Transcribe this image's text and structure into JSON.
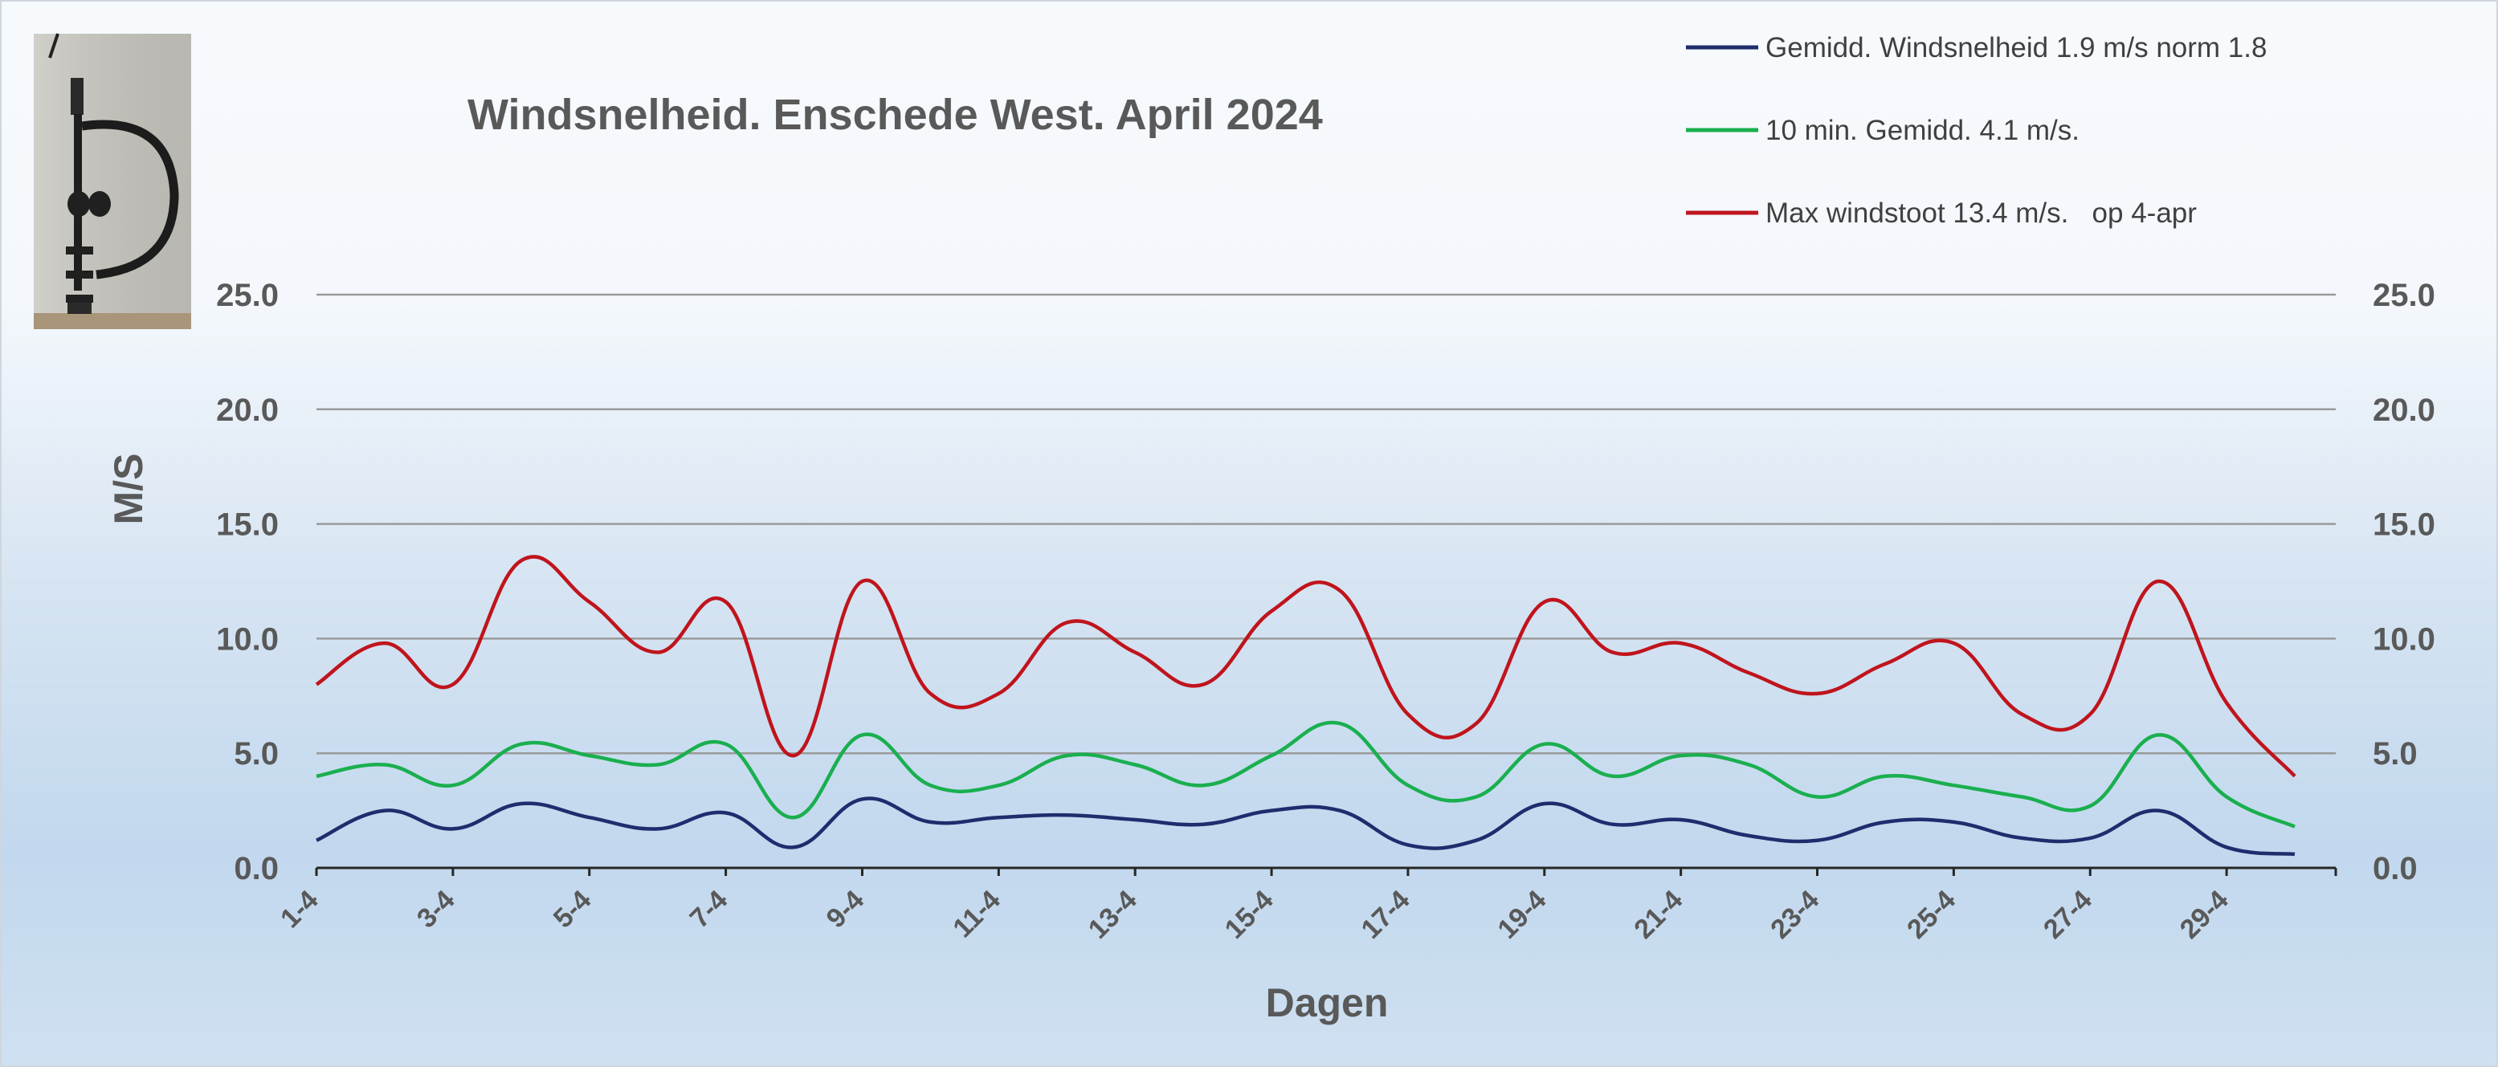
{
  "chart_data": {
    "type": "line",
    "title": "Windsnelheid. Enschede West. April 2024",
    "xlabel": "Dagen",
    "ylabel": "M/S",
    "ylim": [
      0,
      25
    ],
    "yticks": [
      "0.0",
      "5.0",
      "10.0",
      "15.0",
      "20.0",
      "25.0"
    ],
    "y_axes": "left and right",
    "grid": true,
    "legend_position": "top-right",
    "categories": [
      "1-4",
      "2-4",
      "3-4",
      "4-4",
      "5-4",
      "6-4",
      "7-4",
      "8-4",
      "9-4",
      "10-4",
      "11-4",
      "12-4",
      "13-4",
      "14-4",
      "15-4",
      "16-4",
      "17-4",
      "18-4",
      "19-4",
      "20-4",
      "21-4",
      "22-4",
      "23-4",
      "24-4",
      "25-4",
      "26-4",
      "27-4",
      "28-4",
      "29-4",
      "30-4"
    ],
    "x_tick_labels": [
      "1-4",
      "3-4",
      "5-4",
      "7-4",
      "9-4",
      "11-4",
      "13-4",
      "15-4",
      "17-4",
      "19-4",
      "21-4",
      "23-4",
      "25-4",
      "27-4",
      "29-4"
    ],
    "series": [
      {
        "name": "Gemidd. Windsnelheid 1.9 m/s norm 1.8",
        "color": "#1f2d6e",
        "values": [
          1.2,
          2.5,
          1.7,
          2.8,
          2.2,
          1.7,
          2.4,
          0.9,
          3.0,
          2.0,
          2.2,
          2.3,
          2.1,
          1.9,
          2.5,
          2.5,
          1.0,
          1.2,
          2.8,
          1.9,
          2.1,
          1.4,
          1.2,
          2.0,
          2.0,
          1.3,
          1.3,
          2.5,
          0.9,
          0.6
        ]
      },
      {
        "name": "10 min. Gemidd. 4.1 m/s.",
        "color": "#1aaf4f",
        "values": [
          4.0,
          4.5,
          3.6,
          5.4,
          4.9,
          4.5,
          5.4,
          2.2,
          5.8,
          3.6,
          3.6,
          4.9,
          4.5,
          3.6,
          4.9,
          6.3,
          3.6,
          3.1,
          5.4,
          4.0,
          4.9,
          4.5,
          3.1,
          4.0,
          3.6,
          3.1,
          2.7,
          5.8,
          3.1,
          1.8
        ]
      },
      {
        "name": "Max windstoot 13.4 m/s.   op 4-apr",
        "color": "#c0141c",
        "values": [
          8.0,
          9.8,
          8.0,
          13.4,
          11.6,
          9.4,
          11.6,
          4.9,
          12.5,
          7.6,
          7.6,
          10.7,
          9.4,
          8.0,
          11.2,
          12.1,
          6.7,
          6.3,
          11.6,
          9.4,
          9.8,
          8.5,
          7.6,
          8.9,
          9.8,
          6.7,
          6.7,
          12.5,
          7.2,
          4.0
        ]
      }
    ]
  }
}
